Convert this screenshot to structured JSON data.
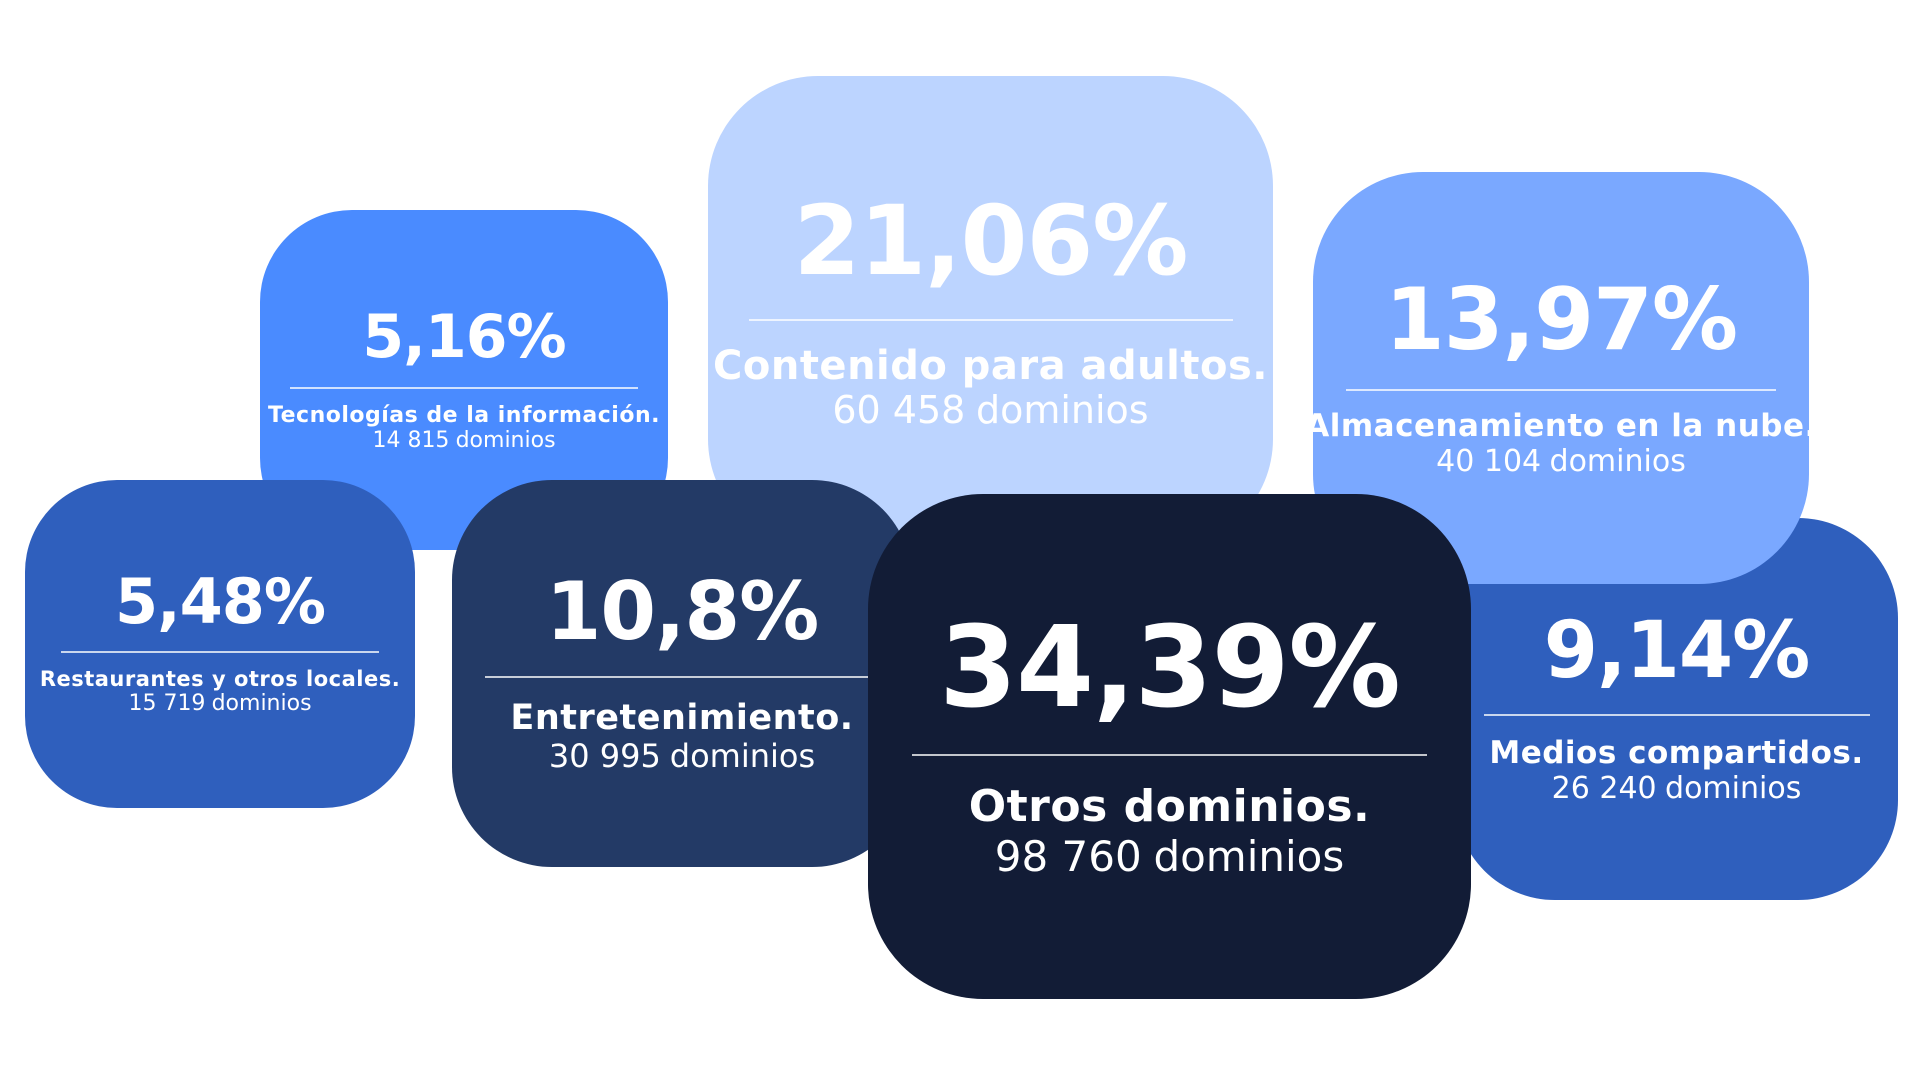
{
  "chart_data": {
    "type": "bubble",
    "unit": "%",
    "count_label": "dominios",
    "items": [
      {
        "key": "otros",
        "percent": "34,39%",
        "label": "Otros dominios.",
        "count": "98 760",
        "bg": "#121c36",
        "fg": "#ffffff"
      },
      {
        "key": "adultos",
        "percent": "21,06%",
        "label": "Contenido para adultos.",
        "count": "60 458",
        "bg": "#bcd4ff",
        "fg": "#ffffff"
      },
      {
        "key": "nube",
        "percent": "13,97%",
        "label": "Almacenamiento en la nube.",
        "count": "40 104",
        "bg": "#7aa8ff",
        "fg": "#ffffff"
      },
      {
        "key": "entret",
        "percent": "10,8%",
        "label": "Entretenimiento.",
        "count": "30 995",
        "bg": "#233a66",
        "fg": "#ffffff"
      },
      {
        "key": "medios",
        "percent": "9,14%",
        "label": "Medios compartidos.",
        "count": "26 240",
        "bg": "#2f5fbd",
        "fg": "#ffffff"
      },
      {
        "key": "restaur",
        "percent": "5,48%",
        "label": "Restaurantes y otros locales.",
        "count": "15 719",
        "bg": "#2f5fbd",
        "fg": "#ffffff"
      },
      {
        "key": "tecno",
        "percent": "5,16%",
        "label": "Tecnologías de la información.",
        "count": "14 815",
        "bg": "#4a8bff",
        "fg": "#ffffff"
      }
    ]
  }
}
